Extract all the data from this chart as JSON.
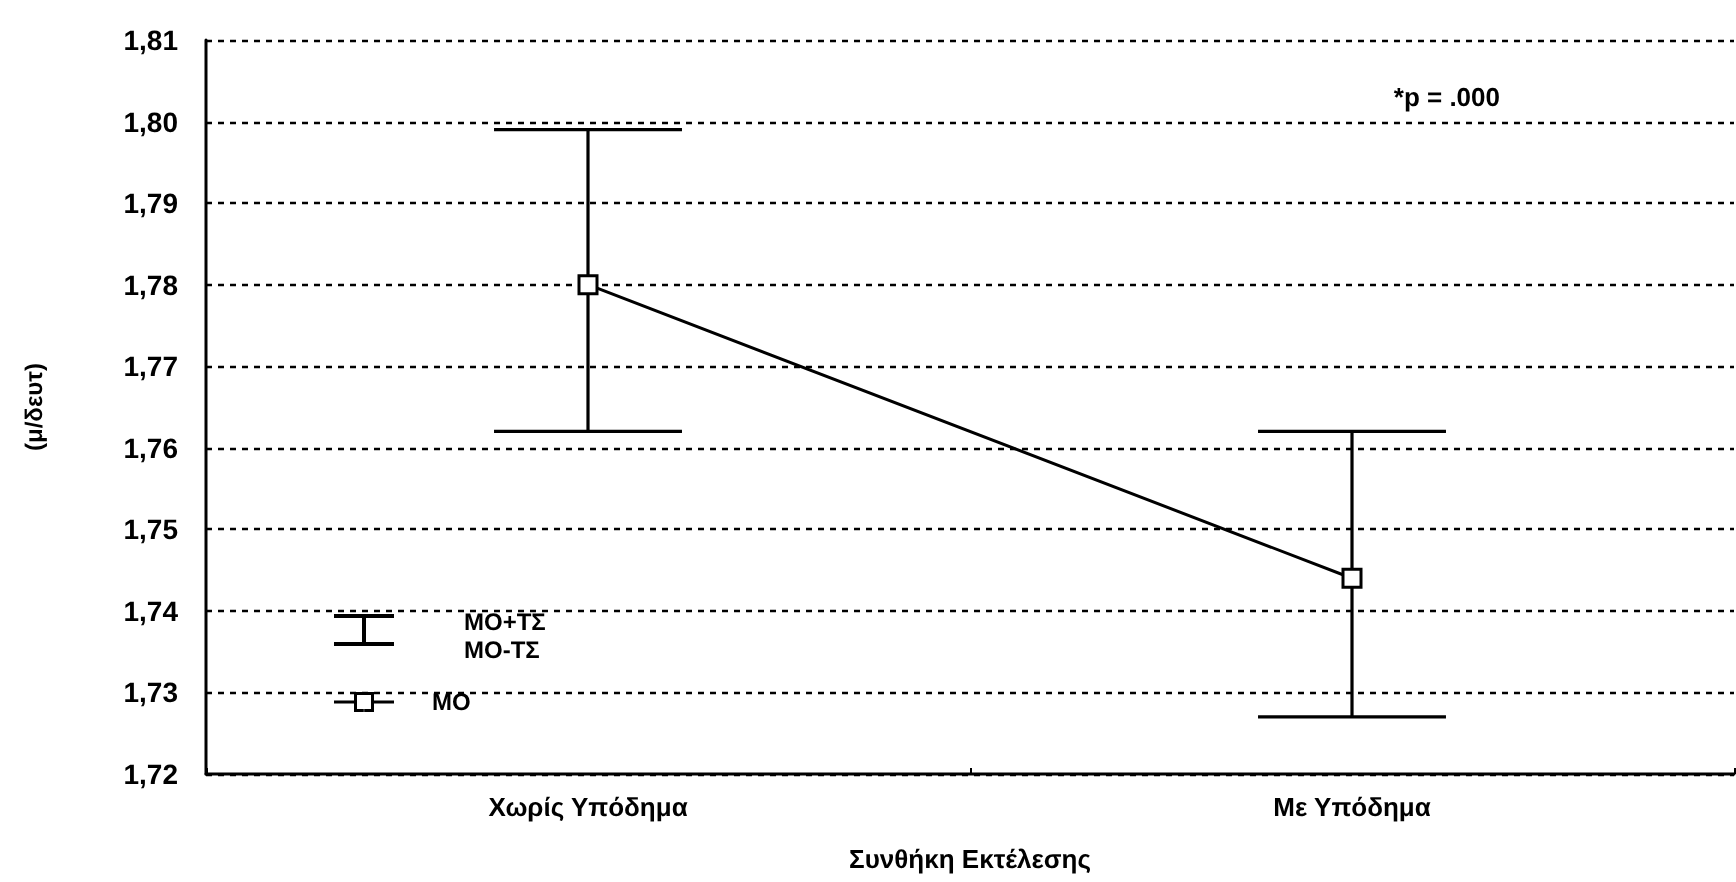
{
  "chart_data": {
    "type": "line",
    "xlabel": "Συνθήκη Εκτέλεσης",
    "ylabel": "(μ/δευτ)",
    "categories": [
      "Χωρίς Υπόδημα",
      "Με Υπόδημα"
    ],
    "series": [
      {
        "name": "ΜΟ",
        "color": "#000000",
        "values": [
          1.78,
          1.744
        ],
        "errors": [
          [
            1.762,
            1.799
          ],
          [
            1.727,
            1.762
          ]
        ]
      }
    ],
    "ylim": [
      1.72,
      1.81
    ],
    "yticks": [
      {
        "value": 1.72,
        "label": "1,72"
      },
      {
        "value": 1.73,
        "label": "1,73"
      },
      {
        "value": 1.74,
        "label": "1,74"
      },
      {
        "value": 1.75,
        "label": "1,75"
      },
      {
        "value": 1.76,
        "label": "1,76"
      },
      {
        "value": 1.77,
        "label": "1,77"
      },
      {
        "value": 1.78,
        "label": "1,78"
      },
      {
        "value": 1.79,
        "label": "1,79"
      },
      {
        "value": 1.8,
        "label": "1,80"
      },
      {
        "value": 1.81,
        "label": "1,81"
      }
    ],
    "grid": "y",
    "legend": "bottom left",
    "marker": "square",
    "line_style": "solid",
    "annotations": [
      "*p = .000",
      "ΜΟ+ΤΣ",
      "ΜΟ-ΤΣ"
    ]
  }
}
